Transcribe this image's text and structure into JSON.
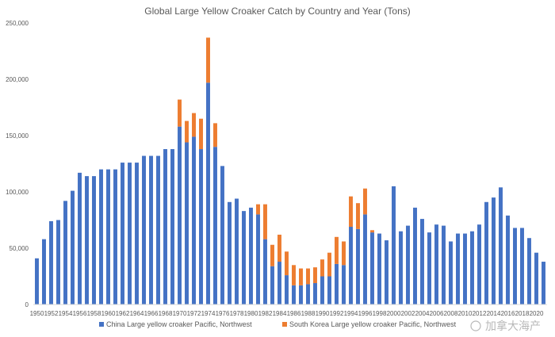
{
  "chart_data": {
    "type": "bar",
    "stacked": true,
    "title": "Global Large Yellow Croaker Catch by Country and Year (Tons)",
    "xlabel": "",
    "ylabel": "",
    "ylim": [
      0,
      250000
    ],
    "yticks": [
      0,
      50000,
      100000,
      150000,
      200000,
      250000
    ],
    "ytick_labels": [
      "0",
      "50,000",
      "100,000",
      "150,000",
      "200,000",
      "250,000"
    ],
    "grid": false,
    "legend": "bottom",
    "categories": [
      1950,
      1951,
      1952,
      1953,
      1954,
      1955,
      1956,
      1957,
      1958,
      1959,
      1960,
      1961,
      1962,
      1963,
      1964,
      1965,
      1966,
      1967,
      1968,
      1969,
      1970,
      1971,
      1972,
      1973,
      1974,
      1975,
      1976,
      1977,
      1978,
      1979,
      1980,
      1981,
      1982,
      1983,
      1984,
      1985,
      1986,
      1987,
      1988,
      1989,
      1990,
      1991,
      1992,
      1993,
      1994,
      1995,
      1996,
      1997,
      1998,
      1999,
      2000,
      2001,
      2002,
      2003,
      2004,
      2005,
      2006,
      2007,
      2008,
      2009,
      2010,
      2011,
      2012,
      2013,
      2014,
      2015,
      2016,
      2017,
      2018,
      2019,
      2020,
      2021
    ],
    "xtick_labels": [
      "1950",
      "1952",
      "1954",
      "1956",
      "1958",
      "1960",
      "1962",
      "1964",
      "1966",
      "1968",
      "1970",
      "1972",
      "1974",
      "1976",
      "1978",
      "1980",
      "1982",
      "1984",
      "1986",
      "1988",
      "1990",
      "1992",
      "1994",
      "1996",
      "1998",
      "2000",
      "2002",
      "2004",
      "2006",
      "2008",
      "2010",
      "2012",
      "2014",
      "2016",
      "2018",
      "2020"
    ],
    "series": [
      {
        "name": "China Large yellow croaker Pacific, Northwest",
        "color": "#4472c4",
        "values": [
          41000,
          58000,
          74000,
          75000,
          92000,
          101000,
          117000,
          114000,
          114000,
          120000,
          120000,
          120000,
          126000,
          126000,
          126000,
          132000,
          132000,
          132000,
          138000,
          138000,
          158000,
          144000,
          149000,
          138000,
          197000,
          140000,
          123000,
          91000,
          94000,
          83000,
          86000,
          80000,
          58000,
          34000,
          38000,
          26000,
          17000,
          17000,
          18000,
          19000,
          25000,
          25000,
          36000,
          35000,
          69000,
          67000,
          80000,
          64000,
          63000,
          57000,
          105000,
          65000,
          70000,
          86000,
          76000,
          64000,
          71000,
          70000,
          56000,
          63000,
          63000,
          65000,
          71000,
          91000,
          95000,
          104000,
          79000,
          68000,
          68000,
          59000,
          46000,
          38000
        ]
      },
      {
        "name": "South Korea Large yellow croaker Pacific, Northwest",
        "color": "#ed7d31",
        "values": [
          0,
          0,
          0,
          0,
          0,
          0,
          0,
          0,
          0,
          0,
          0,
          0,
          0,
          0,
          0,
          0,
          0,
          0,
          0,
          0,
          24000,
          19000,
          21000,
          27000,
          40000,
          21000,
          0,
          0,
          0,
          0,
          0,
          9000,
          31000,
          19000,
          24000,
          21000,
          18000,
          15000,
          14000,
          14000,
          15000,
          21000,
          24000,
          21000,
          27000,
          23000,
          23000,
          2000,
          0,
          0,
          0,
          0,
          0,
          0,
          0,
          0,
          0,
          0,
          0,
          0,
          0,
          0,
          0,
          0,
          0,
          0,
          0,
          0,
          0,
          0,
          0,
          0
        ]
      }
    ]
  },
  "watermark": "加拿大海产"
}
